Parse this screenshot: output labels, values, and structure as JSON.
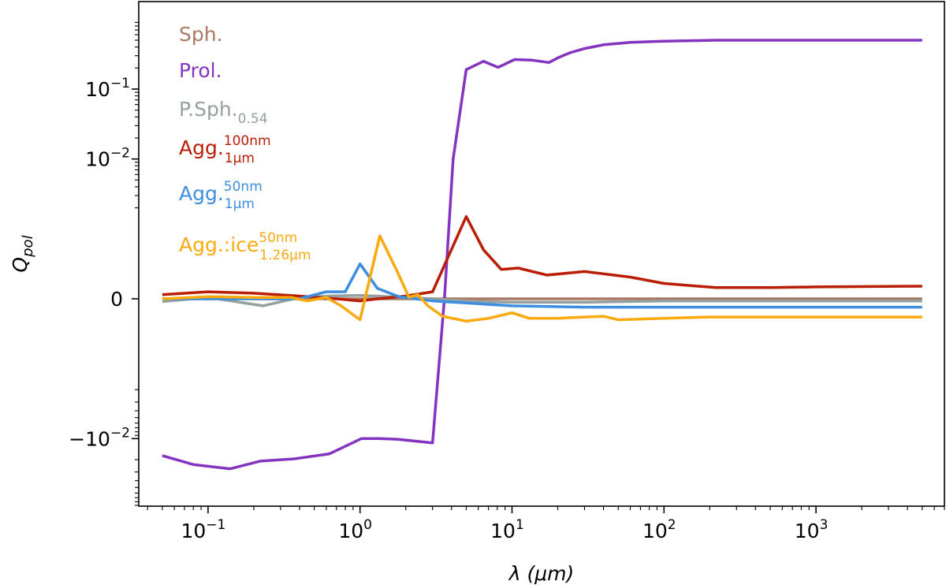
{
  "chart_data": {
    "type": "line",
    "xlabel": "λ (μm)",
    "ylabel": "Q_pol",
    "x_scale": "log",
    "y_scale": "symlog",
    "xlim": [
      0.035,
      7000
    ],
    "ylim": [
      -0.05,
      0.6
    ],
    "x_ticks": [
      {
        "value": 0.1,
        "base": "10",
        "exp": "−1"
      },
      {
        "value": 1,
        "base": "10",
        "exp": "0"
      },
      {
        "value": 10,
        "base": "10",
        "exp": "1"
      },
      {
        "value": 100,
        "base": "10",
        "exp": "2"
      },
      {
        "value": 1000,
        "base": "10",
        "exp": "3"
      }
    ],
    "y_ticks": [
      {
        "value": 0.1,
        "label": "10",
        "exp": "−1"
      },
      {
        "value": 0.01,
        "label": "10",
        "exp": "−2"
      },
      {
        "value": 0,
        "label": "0",
        "exp": ""
      },
      {
        "value": -0.01,
        "label": "−10",
        "exp": "−2"
      }
    ],
    "grid": false,
    "legend_position": "top-left",
    "series": [
      {
        "name": "Sph.",
        "label_main": "Sph.",
        "label_sup": "",
        "label_sub": "",
        "color": "#a97964",
        "x": [
          0.05,
          0.1,
          0.2,
          0.5,
          1,
          2,
          5,
          10,
          20,
          50,
          100,
          200,
          500,
          1000,
          2000,
          5000
        ],
        "y": [
          0.0,
          0.0,
          0.0,
          0.0,
          0.0,
          0.0,
          0.0,
          0.0,
          0.0,
          0.0,
          0.0,
          0.0,
          0.0,
          0.0,
          0.0,
          0.0
        ]
      },
      {
        "name": "Prol.",
        "label_main": "Prol.",
        "label_sup": "",
        "label_sub": "",
        "color": "#8434c0",
        "x": [
          0.05,
          0.08,
          0.14,
          0.22,
          0.37,
          0.63,
          1.02,
          1.33,
          1.75,
          3.0,
          3.6,
          4.1,
          5.0,
          6.5,
          8.1,
          10.4,
          13.4,
          17.5,
          20,
          24,
          30,
          40,
          60,
          100,
          220,
          500,
          1000,
          2000,
          5000
        ],
        "y": [
          -0.0175,
          -0.0235,
          -0.027,
          -0.021,
          -0.0195,
          -0.0165,
          -0.01,
          -0.01,
          -0.0102,
          -0.0115,
          2e-05,
          0.01,
          0.19,
          0.25,
          0.205,
          0.265,
          0.26,
          0.24,
          0.28,
          0.33,
          0.38,
          0.43,
          0.465,
          0.485,
          0.5,
          0.5,
          0.5,
          0.5,
          0.5
        ]
      },
      {
        "name": "P.Sph.0.54",
        "label_main": "P.Sph.",
        "label_sup": "",
        "label_sub": "0.54",
        "color": "#94a0a0",
        "x": [
          0.05,
          0.1,
          0.23,
          0.4,
          0.63,
          1.0,
          2.0,
          3.0,
          5.0,
          10,
          30,
          100,
          300,
          1000,
          5000
        ],
        "y": [
          -4e-05,
          2e-05,
          -0.0001,
          2e-05,
          4e-05,
          5e-05,
          2e-05,
          0.0,
          -3e-05,
          -5e-05,
          -5e-05,
          -3e-05,
          -3e-05,
          -3e-05,
          -3e-05
        ]
      },
      {
        "name": "Agg. 100nm 1μm",
        "label_main": "Agg.",
        "label_sup": "100nm",
        "label_sub": "1μm",
        "color": "#b91e04",
        "x": [
          0.05,
          0.1,
          0.2,
          0.4,
          0.7,
          1.0,
          1.3,
          2.0,
          3.0,
          5.0,
          6.5,
          8.5,
          11,
          17,
          30,
          60,
          100,
          220,
          500,
          1000,
          5000
        ],
        "y": [
          6e-05,
          0.0001,
          8e-05,
          4e-05,
          0.0,
          -3e-05,
          0.0,
          4e-05,
          0.0001,
          0.0015,
          0.0007,
          0.00042,
          0.00044,
          0.00034,
          0.00039,
          0.00031,
          0.00022,
          0.00016,
          0.00016,
          0.00017,
          0.00018
        ]
      },
      {
        "name": "Agg. 50nm 1μm",
        "label_main": "Agg.",
        "label_sup": "50nm",
        "label_sub": "1μm",
        "color": "#3d8ee0",
        "x": [
          0.05,
          0.1,
          0.2,
          0.4,
          0.6,
          0.8,
          1.0,
          1.3,
          1.8,
          3.0,
          5.0,
          10,
          30,
          100,
          300,
          1000,
          5000
        ],
        "y": [
          0.0,
          0.0,
          0.0,
          0.0,
          0.0001,
          0.0001,
          0.0005,
          0.00015,
          3e-05,
          -3e-05,
          -6e-05,
          -0.0001,
          -0.00012,
          -0.00012,
          -0.00012,
          -0.00012,
          -0.00012
        ]
      },
      {
        "name": "Agg.:ice 50nm 1.26μm",
        "label_main": "Agg.:ice",
        "label_sup": "50nm",
        "label_sub": "1.26μm",
        "color": "#fca90e",
        "x": [
          0.05,
          0.1,
          0.2,
          0.35,
          0.45,
          0.6,
          0.75,
          1.0,
          1.35,
          1.75,
          2.1,
          2.4,
          2.8,
          3.5,
          5.0,
          7.0,
          10,
          13,
          20,
          30,
          40,
          50,
          100,
          200,
          500,
          1000,
          5000
        ],
        "y": [
          0.0,
          3e-05,
          2e-05,
          2e-05,
          -3e-05,
          2e-05,
          -0.0001,
          -0.0003,
          0.0009,
          0.0004,
          2e-05,
          6e-05,
          -0.0001,
          -0.00025,
          -0.00032,
          -0.00028,
          -0.0002,
          -0.00028,
          -0.00028,
          -0.00026,
          -0.00025,
          -0.0003,
          -0.00028,
          -0.00026,
          -0.00026,
          -0.00026,
          -0.00026
        ]
      }
    ]
  }
}
